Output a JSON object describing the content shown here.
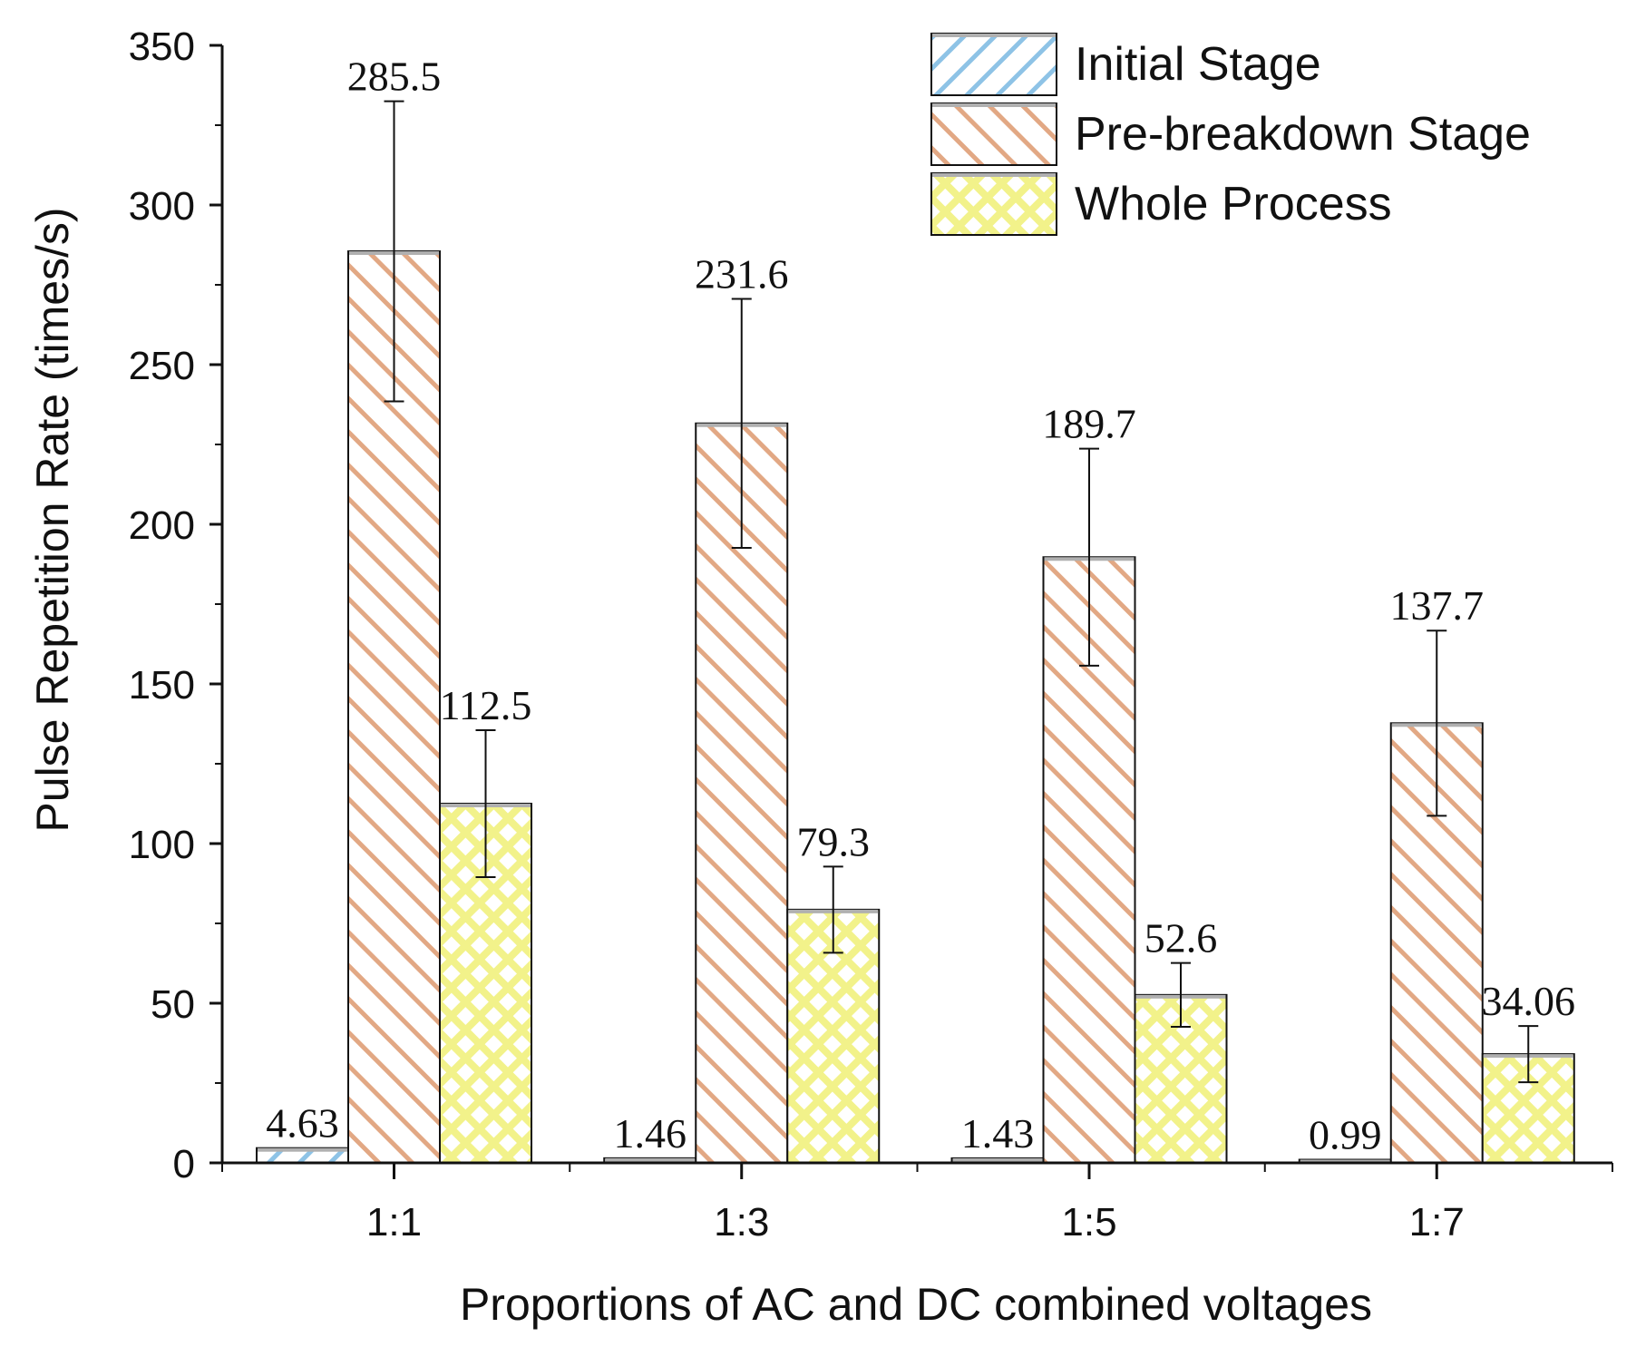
{
  "chart_data": {
    "type": "bar",
    "title": "",
    "xlabel": "Proportions of AC and DC combined voltages",
    "ylabel": "Pulse Repetition Rate (times/s)",
    "ylim": [
      0,
      350
    ],
    "yticks": [
      0,
      50,
      100,
      150,
      200,
      250,
      300,
      350
    ],
    "categories": [
      "1:1",
      "1:3",
      "1:5",
      "1:7"
    ],
    "series": [
      {
        "name": "Initial Stage",
        "pattern": "hatch-blue",
        "values": [
          4.63,
          1.46,
          1.43,
          0.99
        ],
        "labels": [
          "4.63",
          "1.46",
          "1.43",
          "0.99"
        ],
        "errors": [
          null,
          null,
          null,
          null
        ]
      },
      {
        "name": "Pre-breakdown Stage",
        "pattern": "hatch-orange",
        "values": [
          285.5,
          231.6,
          189.7,
          137.7
        ],
        "labels": [
          "285.5",
          "231.6",
          "189.7",
          "137.7"
        ],
        "errors": [
          47,
          39,
          34,
          29
        ]
      },
      {
        "name": "Whole Process",
        "pattern": "cross-yellow",
        "values": [
          112.5,
          79.3,
          52.6,
          34.06
        ],
        "labels": [
          "112.5",
          "79.3",
          "52.6",
          "34.06"
        ],
        "errors": [
          23,
          13.5,
          10,
          8.8
        ]
      }
    ],
    "legend_position": "top-right",
    "colors": {
      "blue_hatch": "#8ec3e6",
      "orange_hatch": "#e2a884",
      "yellow_fill": "#f2f28a",
      "yellow_lines": "#ffffff",
      "bar_outline": "#111111",
      "bar_cap": "#b0b0b0"
    }
  }
}
